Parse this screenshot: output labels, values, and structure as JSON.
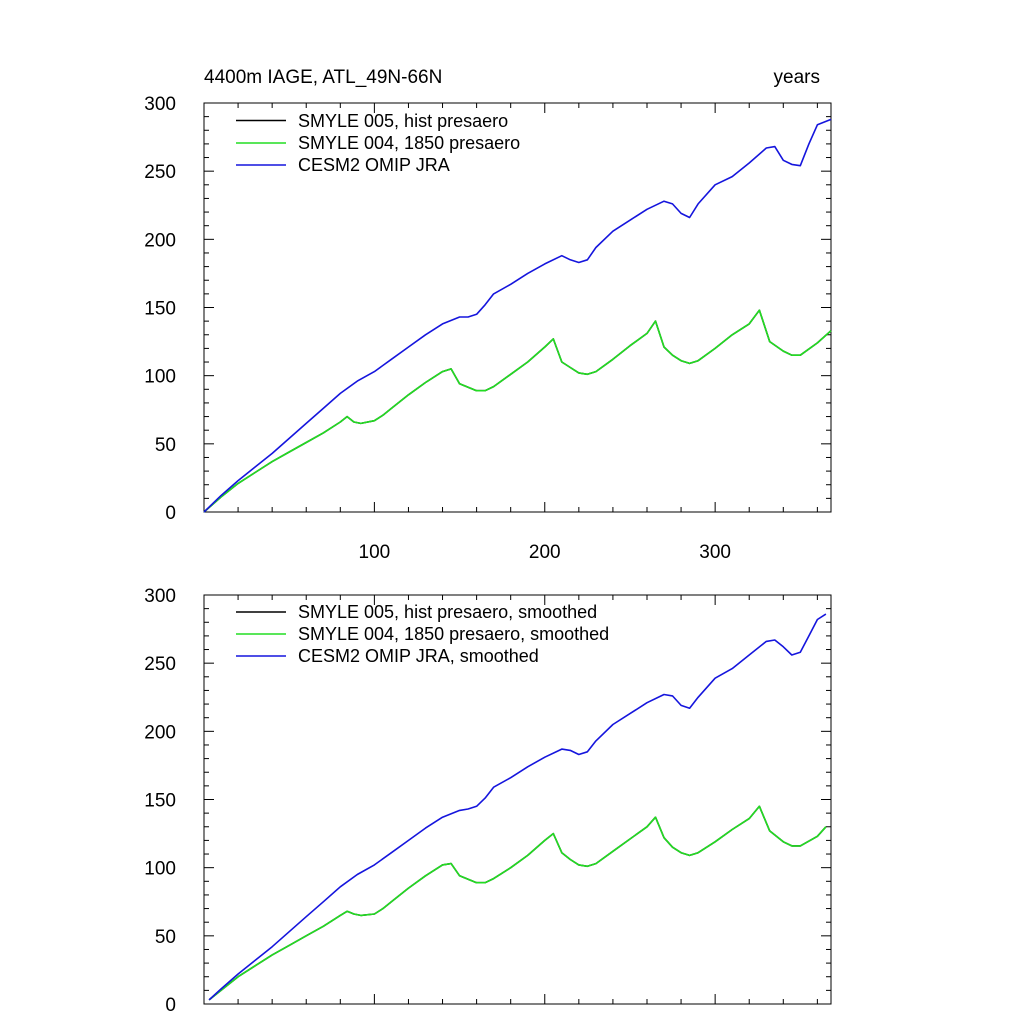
{
  "chart_data": [
    {
      "type": "line",
      "title_left": "4400m IAGE, ATL_49N-66N",
      "title_right": "years",
      "xlim": [
        0,
        368
      ],
      "ylim": [
        0,
        300
      ],
      "x_ticks": [
        100,
        200,
        300
      ],
      "y_ticks": [
        0,
        50,
        100,
        150,
        200,
        250,
        300
      ],
      "show_x_tick_labels": true,
      "legend_position": "top-left",
      "series": [
        {
          "name": "SMYLE 005, hist presaero",
          "color": "#000000",
          "x": [
            0,
            10,
            20,
            30,
            40,
            50,
            60,
            70,
            80,
            84,
            88,
            92,
            100,
            105,
            110,
            120,
            130,
            140,
            145,
            150,
            160,
            165,
            170,
            180,
            190,
            200,
            205,
            210,
            215,
            220,
            225,
            230,
            240,
            250,
            260,
            265,
            270,
            275,
            280,
            285,
            290,
            300,
            310,
            320,
            326,
            332,
            340,
            345,
            350,
            360,
            368
          ],
          "y": [
            0,
            11,
            21,
            29,
            37,
            44,
            51,
            58,
            66,
            70,
            66,
            65,
            67,
            71,
            76,
            86,
            95,
            103,
            105,
            94,
            89,
            89,
            92,
            101,
            110,
            121,
            127,
            110,
            106,
            102,
            101,
            103,
            112,
            122,
            131,
            140,
            121,
            115,
            111,
            109,
            111,
            120,
            130,
            138,
            148,
            125,
            118,
            115,
            115,
            124,
            133
          ]
        },
        {
          "name": "SMYLE 004, 1850 presaero",
          "color": "#22dd22",
          "x": [
            0,
            10,
            20,
            30,
            40,
            50,
            60,
            70,
            80,
            84,
            88,
            92,
            100,
            105,
            110,
            120,
            130,
            140,
            145,
            150,
            160,
            165,
            170,
            180,
            190,
            200,
            205,
            210,
            215,
            220,
            225,
            230,
            240,
            250,
            260,
            265,
            270,
            275,
            280,
            285,
            290,
            300,
            310,
            320,
            326,
            332,
            340,
            345,
            350,
            360,
            368
          ],
          "y": [
            0,
            11,
            21,
            29,
            37,
            44,
            51,
            58,
            66,
            70,
            66,
            65,
            67,
            71,
            76,
            86,
            95,
            103,
            105,
            94,
            89,
            89,
            92,
            101,
            110,
            121,
            127,
            110,
            106,
            102,
            101,
            103,
            112,
            122,
            131,
            140,
            121,
            115,
            111,
            109,
            111,
            120,
            130,
            138,
            148,
            125,
            118,
            115,
            115,
            124,
            133
          ]
        },
        {
          "name": "CESM2 OMIP JRA",
          "color": "#1515dd",
          "x": [
            0,
            10,
            20,
            30,
            40,
            50,
            60,
            70,
            80,
            90,
            100,
            110,
            120,
            130,
            140,
            150,
            155,
            160,
            165,
            170,
            180,
            190,
            200,
            210,
            215,
            220,
            225,
            230,
            240,
            250,
            260,
            270,
            275,
            280,
            285,
            290,
            300,
            310,
            320,
            330,
            335,
            340,
            345,
            350,
            355,
            360,
            368
          ],
          "y": [
            0,
            12,
            23,
            33,
            43,
            54,
            65,
            76,
            87,
            96,
            103,
            112,
            121,
            130,
            138,
            143,
            143,
            145,
            152,
            160,
            167,
            175,
            182,
            188,
            185,
            183,
            185,
            194,
            206,
            214,
            222,
            228,
            226,
            219,
            216,
            226,
            240,
            246,
            256,
            267,
            268,
            258,
            255,
            254,
            270,
            284,
            288
          ]
        }
      ]
    },
    {
      "type": "line",
      "title_left": "",
      "title_right": "",
      "xlim": [
        0,
        368
      ],
      "ylim": [
        0,
        300
      ],
      "x_ticks": [
        100,
        200,
        300
      ],
      "y_ticks": [
        0,
        50,
        100,
        150,
        200,
        250,
        300
      ],
      "show_x_tick_labels": false,
      "legend_position": "top-left",
      "series": [
        {
          "name": "SMYLE 005, hist presaero, smoothed",
          "color": "#000000",
          "x": [
            3,
            10,
            20,
            30,
            40,
            50,
            60,
            70,
            80,
            84,
            88,
            92,
            100,
            105,
            110,
            120,
            130,
            140,
            145,
            150,
            160,
            165,
            170,
            180,
            190,
            200,
            205,
            210,
            215,
            220,
            225,
            230,
            240,
            250,
            260,
            265,
            270,
            275,
            280,
            285,
            290,
            300,
            310,
            320,
            326,
            332,
            340,
            345,
            350,
            360,
            365
          ],
          "y": [
            3,
            10,
            20,
            28,
            36,
            43,
            50,
            57,
            65,
            68,
            66,
            65,
            66,
            70,
            75,
            85,
            94,
            102,
            103,
            94,
            89,
            89,
            92,
            100,
            109,
            120,
            125,
            111,
            106,
            102,
            101,
            103,
            112,
            121,
            130,
            137,
            122,
            115,
            111,
            109,
            111,
            119,
            128,
            136,
            145,
            127,
            119,
            116,
            116,
            123,
            130
          ]
        },
        {
          "name": "SMYLE 004, 1850 presaero, smoothed",
          "color": "#22dd22",
          "x": [
            3,
            10,
            20,
            30,
            40,
            50,
            60,
            70,
            80,
            84,
            88,
            92,
            100,
            105,
            110,
            120,
            130,
            140,
            145,
            150,
            160,
            165,
            170,
            180,
            190,
            200,
            205,
            210,
            215,
            220,
            225,
            230,
            240,
            250,
            260,
            265,
            270,
            275,
            280,
            285,
            290,
            300,
            310,
            320,
            326,
            332,
            340,
            345,
            350,
            360,
            365
          ],
          "y": [
            3,
            10,
            20,
            28,
            36,
            43,
            50,
            57,
            65,
            68,
            66,
            65,
            66,
            70,
            75,
            85,
            94,
            102,
            103,
            94,
            89,
            89,
            92,
            100,
            109,
            120,
            125,
            111,
            106,
            102,
            101,
            103,
            112,
            121,
            130,
            137,
            122,
            115,
            111,
            109,
            111,
            119,
            128,
            136,
            145,
            127,
            119,
            116,
            116,
            123,
            130
          ]
        },
        {
          "name": "CESM2 OMIP JRA, smoothed",
          "color": "#1515dd",
          "x": [
            3,
            10,
            20,
            30,
            40,
            50,
            60,
            70,
            80,
            90,
            100,
            110,
            120,
            130,
            140,
            150,
            155,
            160,
            165,
            170,
            180,
            190,
            200,
            210,
            215,
            220,
            225,
            230,
            240,
            250,
            260,
            270,
            275,
            280,
            285,
            290,
            300,
            310,
            320,
            330,
            335,
            340,
            345,
            350,
            355,
            360,
            365
          ],
          "y": [
            3,
            11,
            22,
            32,
            42,
            53,
            64,
            75,
            86,
            95,
            102,
            111,
            120,
            129,
            137,
            142,
            143,
            145,
            151,
            159,
            166,
            174,
            181,
            187,
            186,
            183,
            185,
            193,
            205,
            213,
            221,
            227,
            226,
            219,
            217,
            225,
            239,
            246,
            256,
            266,
            267,
            262,
            256,
            258,
            270,
            282,
            286
          ]
        }
      ]
    }
  ]
}
